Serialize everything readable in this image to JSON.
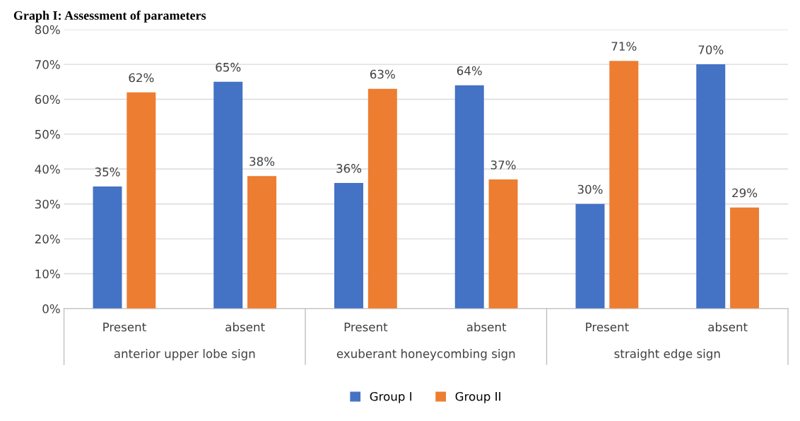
{
  "chart_data": {
    "type": "bar",
    "title": "Graph I: Assessment of parameters",
    "categories": [
      "Present",
      "absent",
      "Present",
      "absent",
      "Present",
      "absent"
    ],
    "series": [
      {
        "name": "Group I",
        "color": "#4472c4",
        "values": [
          35,
          65,
          36,
          64,
          30,
          70
        ],
        "value_labels": [
          "35%",
          "65%",
          "36%",
          "64%",
          "30%",
          "70%"
        ]
      },
      {
        "name": "Group II",
        "color": "#ed7d31",
        "values": [
          62,
          38,
          63,
          37,
          71,
          29
        ],
        "value_labels": [
          "62%",
          "38%",
          "63%",
          "37%",
          "71%",
          "29%"
        ]
      }
    ],
    "annotations": [
      "anterior upper lobe sign",
      "exuberant honeycombing sign",
      "straight edge sign"
    ],
    "ylim": [
      0,
      80
    ],
    "yticks": [
      {
        "value": 0,
        "label": "0%"
      },
      {
        "value": 10,
        "label": "10%"
      },
      {
        "value": 20,
        "label": "20%"
      },
      {
        "value": 30,
        "label": "30%"
      },
      {
        "value": 40,
        "label": "40%"
      },
      {
        "value": 50,
        "label": "50%"
      },
      {
        "value": 60,
        "label": "60%"
      },
      {
        "value": 70,
        "label": "70%"
      },
      {
        "value": 80,
        "label": "80%"
      }
    ],
    "grid": "y",
    "legend": "bottom"
  }
}
